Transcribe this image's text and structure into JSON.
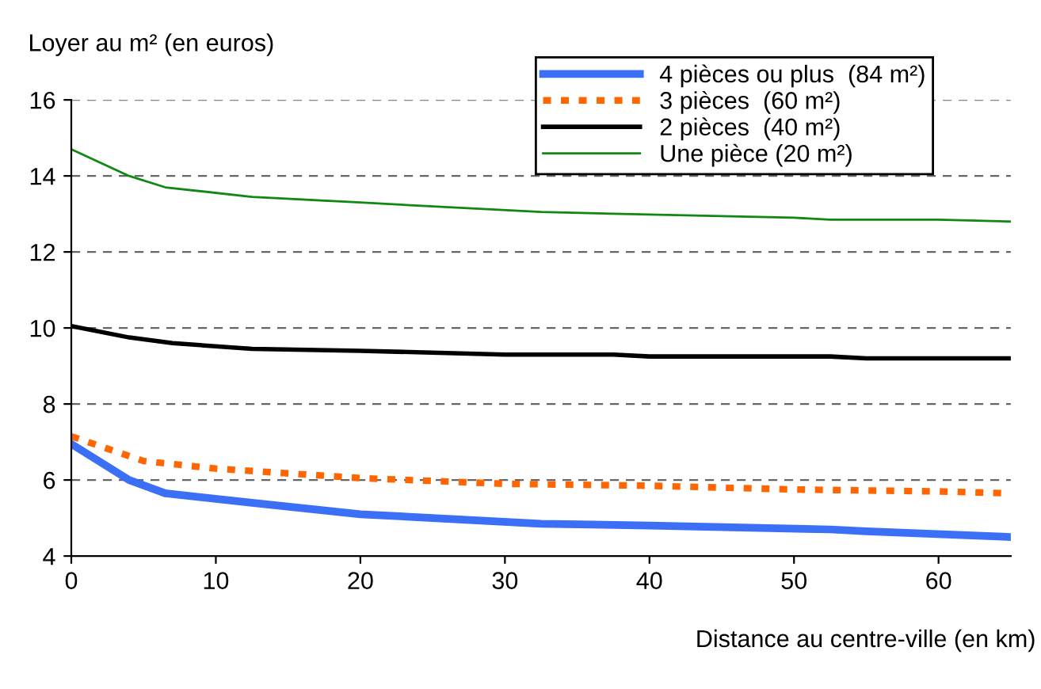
{
  "chart_data": {
    "type": "line",
    "ylabel": "Loyer au m² (en euros)",
    "xlabel": "Distance au centre-ville (en km)",
    "xlim": [
      0,
      65
    ],
    "xticks": [
      0,
      10,
      20,
      30,
      40,
      50,
      60
    ],
    "ylim": [
      4,
      16
    ],
    "yticks": [
      4,
      6,
      8,
      10,
      12,
      14,
      16
    ],
    "grid": "y",
    "legend": "top right",
    "marker": "none",
    "series": [
      {
        "name": "4 pièces ou plus  (84 m²)",
        "color": "#3b6ff5",
        "line_style": "solid",
        "x": [
          0,
          4,
          6.5,
          12.5,
          20,
          32.5,
          40,
          52.5,
          55,
          65
        ],
        "values": [
          6.95,
          6.0,
          5.65,
          5.4,
          5.1,
          4.85,
          4.8,
          4.7,
          4.65,
          4.5
        ]
      },
      {
        "name": "3 pièces  (60 m²)",
        "color": "#ff6600",
        "line_style": "dotted",
        "x": [
          0,
          5,
          10,
          20,
          30,
          40,
          50,
          60,
          65
        ],
        "values": [
          7.15,
          6.5,
          6.3,
          6.05,
          5.9,
          5.85,
          5.75,
          5.7,
          5.65
        ]
      },
      {
        "name": "2 pièces  (40 m²)",
        "color": "#000000",
        "line_style": "solid",
        "x": [
          0,
          4,
          7,
          12.5,
          20,
          30,
          37.5,
          40,
          52.5,
          55,
          65
        ],
        "values": [
          10.05,
          9.75,
          9.6,
          9.45,
          9.4,
          9.3,
          9.3,
          9.25,
          9.25,
          9.2,
          9.2
        ]
      },
      {
        "name": "Une pièce (20 m²)",
        "color": "#118811",
        "line_style": "solid",
        "x": [
          0,
          4,
          6.5,
          12.5,
          20,
          32.5,
          50,
          52.5,
          60,
          65
        ],
        "values": [
          14.7,
          14.0,
          13.7,
          13.45,
          13.3,
          13.05,
          12.9,
          12.85,
          12.85,
          12.8
        ]
      }
    ]
  }
}
